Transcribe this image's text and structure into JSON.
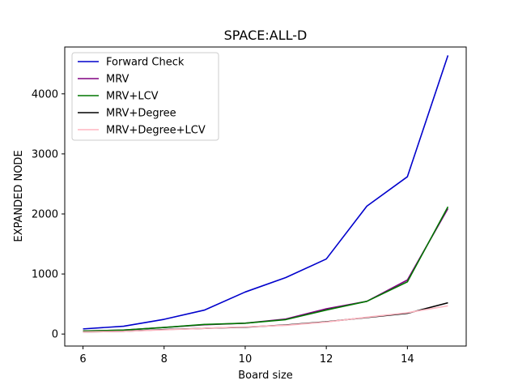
{
  "chart_data": {
    "type": "line",
    "title": "SPACE:ALL-D",
    "xlabel": "Board size",
    "ylabel": "EXPANDED NODE",
    "x": [
      6,
      7,
      8,
      9,
      10,
      11,
      12,
      13,
      14,
      15
    ],
    "xlim": [
      5.55,
      15.45
    ],
    "ylim": [
      -200,
      4780
    ],
    "xticks": [
      6,
      8,
      10,
      12,
      14
    ],
    "yticks": [
      0,
      1000,
      2000,
      3000,
      4000
    ],
    "grid": false,
    "legend_position": "top-left",
    "series": [
      {
        "name": "Forward Check",
        "color": "#0000cc",
        "values": [
          85,
          130,
          245,
          400,
          700,
          940,
          1250,
          2130,
          2620,
          4640
        ]
      },
      {
        "name": "MRV",
        "color": "#800080",
        "values": [
          50,
          65,
          110,
          155,
          180,
          250,
          420,
          545,
          900,
          2090
        ]
      },
      {
        "name": "MRV+LCV",
        "color": "#007700",
        "values": [
          50,
          65,
          110,
          160,
          180,
          240,
          400,
          545,
          870,
          2120
        ]
      },
      {
        "name": "MRV+Degree",
        "color": "#000000",
        "values": [
          35,
          45,
          75,
          95,
          115,
          150,
          205,
          275,
          345,
          520
        ]
      },
      {
        "name": "MRV+Degree+LCV",
        "color": "#ffb6c1",
        "values": [
          35,
          45,
          70,
          95,
          120,
          145,
          200,
          280,
          355,
          470
        ]
      }
    ]
  }
}
